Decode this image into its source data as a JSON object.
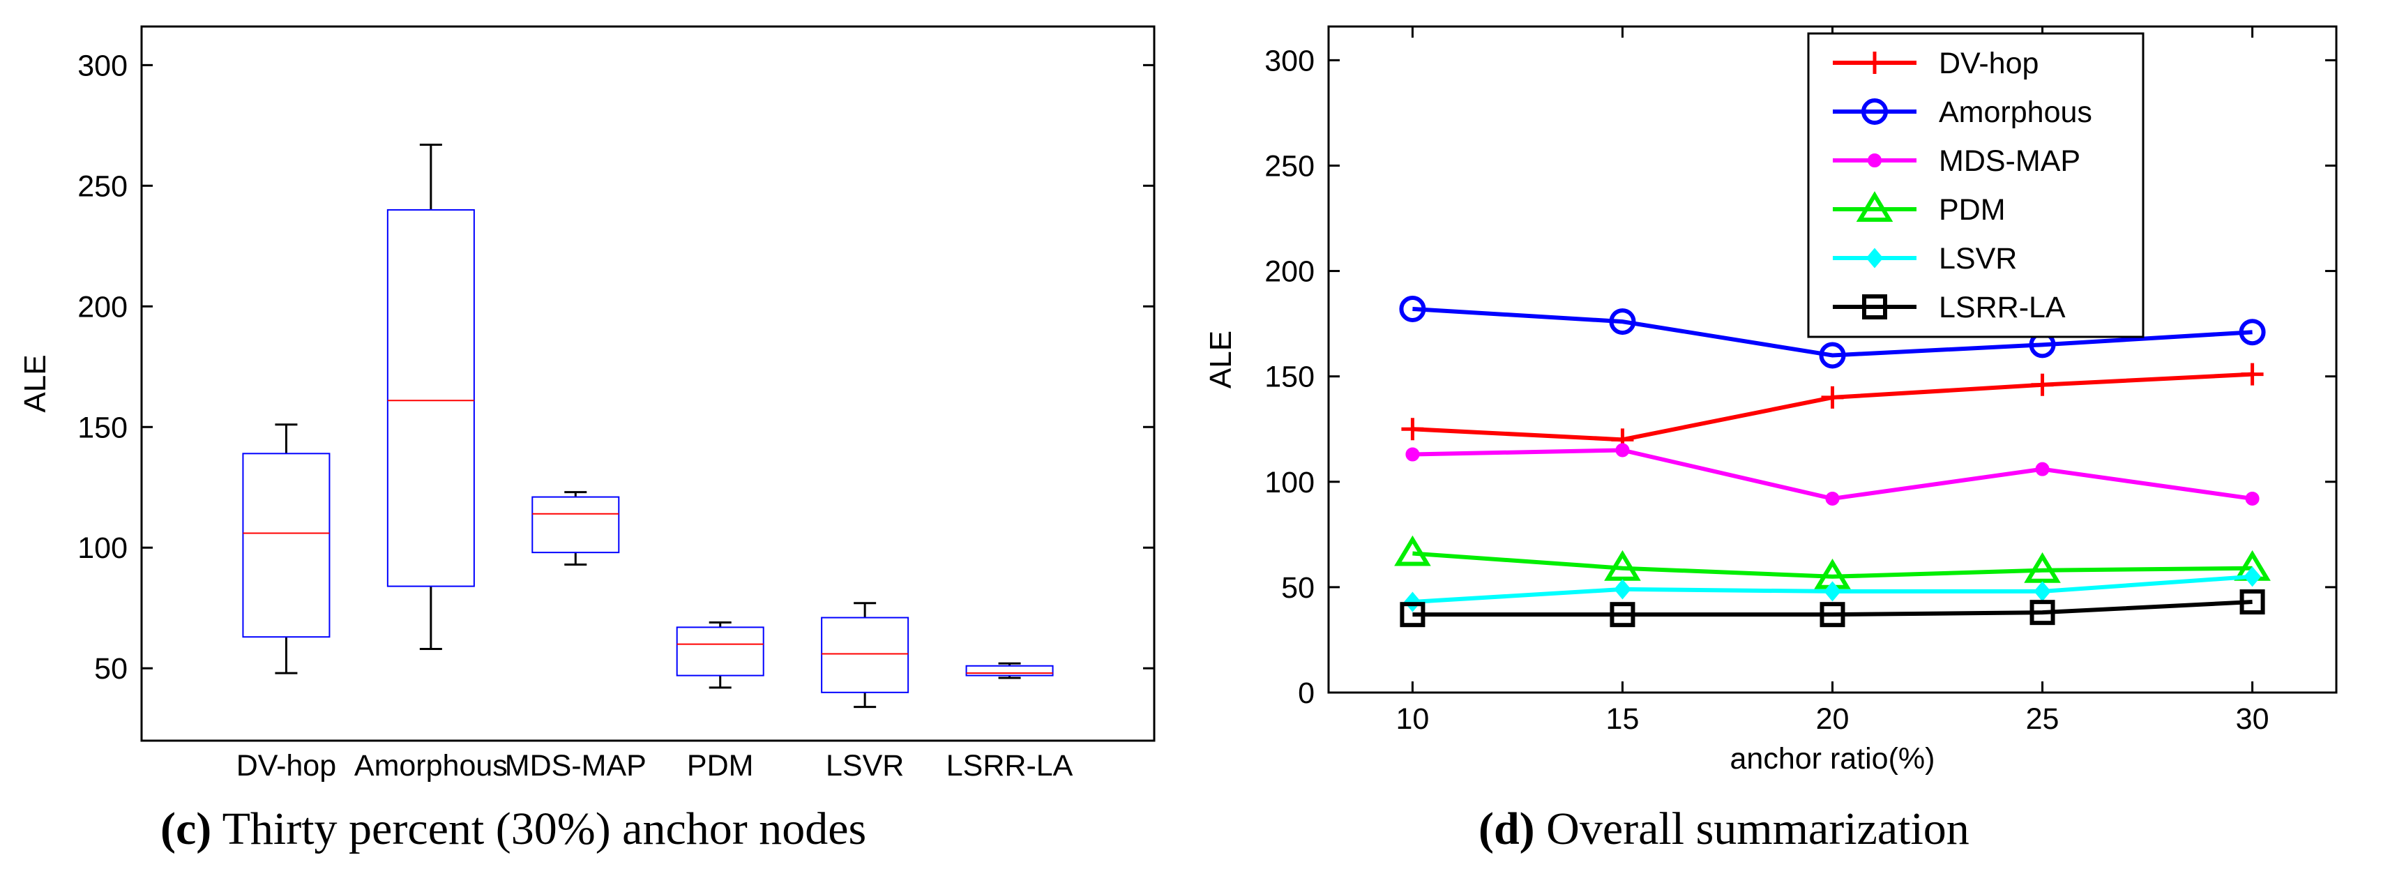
{
  "chart_data": [
    {
      "type": "box",
      "ylabel": "ALE",
      "xlabel": "",
      "ylim": [
        20,
        316
      ],
      "yticks": [
        50,
        100,
        150,
        200,
        250,
        300
      ],
      "categories": [
        "DV-hop",
        "Amorphous",
        "MDS-MAP",
        "PDM",
        "LSVR",
        "LSRR-LA"
      ],
      "boxes": [
        {
          "whisker_low": 48,
          "q1": 63,
          "median": 106,
          "q3": 139,
          "whisker_high": 151
        },
        {
          "whisker_low": 58,
          "q1": 84,
          "median": 161,
          "q3": 240,
          "whisker_high": 267
        },
        {
          "whisker_low": 93,
          "q1": 98,
          "median": 114,
          "q3": 121,
          "whisker_high": 123
        },
        {
          "whisker_low": 42,
          "q1": 47,
          "median": 60,
          "q3": 67,
          "whisker_high": 69
        },
        {
          "whisker_low": 34,
          "q1": 40,
          "median": 56,
          "q3": 71,
          "whisker_high": 77
        },
        {
          "whisker_low": 46,
          "q1": 47,
          "median": 48,
          "q3": 51,
          "whisker_high": 52
        }
      ],
      "caption_label": "(c)",
      "caption_text": "Thirty percent (30%) anchor nodes",
      "colors": {
        "box": "#0000ff",
        "median": "#ff0000",
        "whisker": "#000000"
      }
    },
    {
      "type": "line",
      "ylabel": "ALE",
      "xlabel": "anchor ratio(%)",
      "x": [
        10,
        15,
        20,
        25,
        30
      ],
      "xlim": [
        8,
        32
      ],
      "xticks": [
        10,
        15,
        20,
        25,
        30
      ],
      "ylim": [
        0,
        316
      ],
      "yticks": [
        0,
        50,
        100,
        150,
        200,
        250,
        300
      ],
      "legend_position": "top-center",
      "series": [
        {
          "name": "DV-hop",
          "values": [
            125,
            120,
            140,
            146,
            151
          ],
          "color": "#ff0000",
          "marker": "plus"
        },
        {
          "name": "Amorphous",
          "values": [
            182,
            176,
            160,
            165,
            171
          ],
          "color": "#0000ff",
          "marker": "circle"
        },
        {
          "name": "MDS-MAP",
          "values": [
            113,
            115,
            92,
            106,
            92
          ],
          "color": "#ff00ff",
          "marker": "dot"
        },
        {
          "name": "PDM",
          "values": [
            66,
            59,
            55,
            58,
            59
          ],
          "color": "#00ee00",
          "marker": "triangle"
        },
        {
          "name": "LSVR",
          "values": [
            43,
            49,
            48,
            48,
            55
          ],
          "color": "#00ffff",
          "marker": "diamond"
        },
        {
          "name": "LSRR-LA",
          "values": [
            37,
            37,
            37,
            38,
            43
          ],
          "color": "#000000",
          "marker": "square"
        }
      ],
      "caption_label": "(d)",
      "caption_text": "Overall summarization"
    }
  ]
}
